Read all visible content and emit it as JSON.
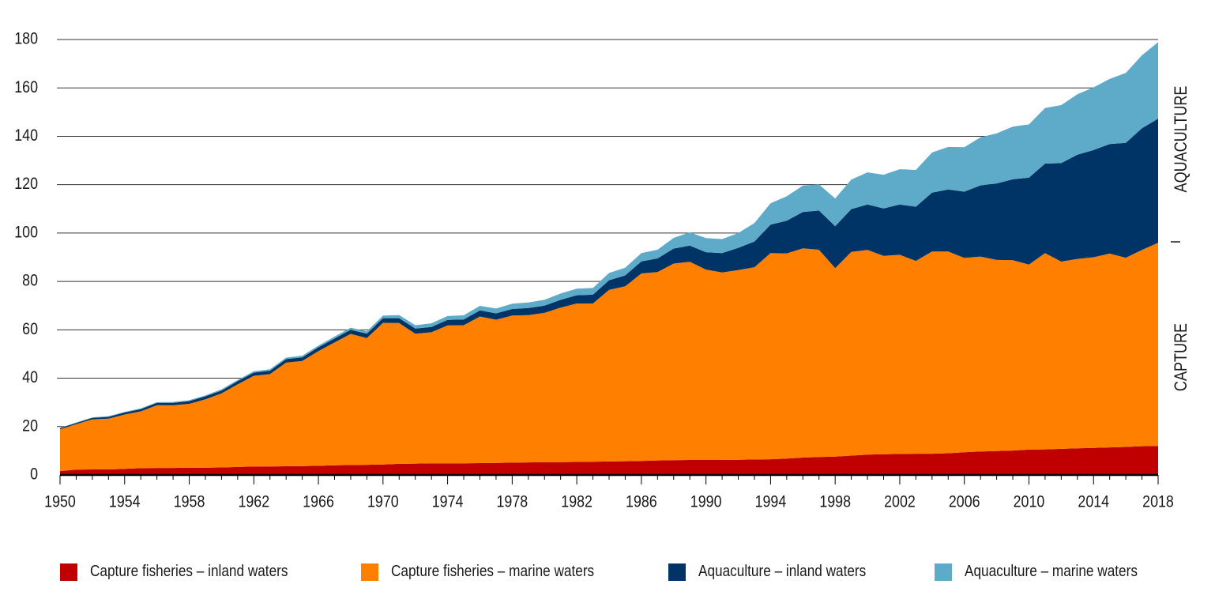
{
  "chart_data": {
    "type": "area",
    "stacked": true,
    "x_start": 1950,
    "x_end": 2018,
    "x_tick_labels": [
      "1950",
      "1954",
      "1958",
      "1962",
      "1966",
      "1970",
      "1974",
      "1978",
      "1982",
      "1986",
      "1990",
      "1994",
      "1998",
      "2002",
      "2006",
      "2010",
      "2014",
      "2018"
    ],
    "y_tick_labels": [
      "0",
      "20",
      "40",
      "60",
      "80",
      "100",
      "120",
      "140",
      "160",
      "180"
    ],
    "ylim": [
      0,
      180
    ],
    "grid": true,
    "side_labels": {
      "upper": "AQUACULTURE",
      "lower": "CAPTURE"
    },
    "series": [
      {
        "name": "Capture fisheries – inland waters",
        "color": "#c00000",
        "values": [
          1.6,
          2.2,
          2.3,
          2.3,
          2.5,
          2.8,
          2.9,
          2.9,
          3.0,
          3.0,
          3.1,
          3.3,
          3.5,
          3.5,
          3.6,
          3.7,
          3.8,
          4.0,
          4.1,
          4.2,
          4.3,
          4.6,
          4.7,
          4.8,
          4.8,
          4.8,
          4.9,
          5.0,
          5.1,
          5.2,
          5.3,
          5.3,
          5.4,
          5.5,
          5.6,
          5.7,
          5.8,
          6.0,
          6.1,
          6.2,
          6.2,
          6.2,
          6.3,
          6.4,
          6.5,
          6.8,
          7.2,
          7.4,
          7.6,
          8.0,
          8.4,
          8.6,
          8.7,
          8.8,
          8.8,
          9.0,
          9.4,
          9.7,
          9.9,
          10.1,
          10.5,
          10.6,
          10.8,
          11.0,
          11.2,
          11.4,
          11.6,
          11.9,
          12.0
        ]
      },
      {
        "name": "Capture fisheries – marine waters",
        "color": "#ff8000",
        "values": [
          17.3,
          18.8,
          20.7,
          21.0,
          22.5,
          23.5,
          25.9,
          25.9,
          26.4,
          28.3,
          30.6,
          34.2,
          37.5,
          38.2,
          42.9,
          43.4,
          47.4,
          50.8,
          54.2,
          52.4,
          58.6,
          58.2,
          53.7,
          54.2,
          57.0,
          57.1,
          60.6,
          59.2,
          60.8,
          60.9,
          61.7,
          63.9,
          65.5,
          65.4,
          70.9,
          72.3,
          77.5,
          77.9,
          81.3,
          81.9,
          78.7,
          77.5,
          78.4,
          79.5,
          85.2,
          84.8,
          86.5,
          85.7,
          77.9,
          84.2,
          84.6,
          82.0,
          82.3,
          79.7,
          83.6,
          83.4,
          80.3,
          80.6,
          79.0,
          78.7,
          76.5,
          81.1,
          77.4,
          78.3,
          78.8,
          80.1,
          78.2,
          81.1,
          84.0
        ]
      },
      {
        "name": "Aquaculture – inland waters",
        "color": "#003366",
        "values": [
          0.4,
          0.5,
          0.6,
          0.7,
          0.8,
          0.9,
          1.0,
          1.0,
          1.1,
          1.2,
          1.2,
          1.3,
          1.3,
          1.4,
          1.4,
          1.5,
          1.6,
          1.6,
          1.7,
          1.8,
          1.9,
          2.0,
          2.1,
          2.2,
          2.3,
          2.4,
          2.5,
          2.6,
          2.7,
          2.9,
          3.0,
          3.2,
          3.4,
          3.6,
          4.0,
          4.5,
          5.0,
          5.6,
          6.2,
          6.7,
          7.2,
          8.0,
          9.2,
          10.6,
          11.8,
          13.5,
          15.0,
          16.2,
          17.3,
          17.7,
          18.8,
          19.6,
          20.8,
          22.4,
          24.3,
          25.6,
          27.4,
          29.4,
          31.6,
          33.4,
          35.9,
          37.0,
          40.7,
          43.1,
          44.3,
          45.3,
          47.5,
          50.3,
          51.3
        ]
      },
      {
        "name": "Aquaculture – marine waters",
        "color": "#5eaac9",
        "values": [
          0.2,
          0.2,
          0.2,
          0.3,
          0.3,
          0.3,
          0.3,
          0.4,
          0.4,
          0.4,
          0.5,
          0.5,
          0.6,
          0.6,
          0.6,
          0.7,
          0.7,
          0.8,
          0.9,
          1.0,
          1.1,
          1.3,
          1.4,
          1.5,
          1.6,
          1.7,
          1.9,
          2.0,
          2.2,
          2.3,
          2.4,
          2.6,
          2.7,
          2.8,
          3.0,
          3.2,
          3.4,
          3.6,
          4.4,
          5.5,
          5.8,
          5.8,
          6.1,
          7.6,
          8.8,
          10.1,
          10.9,
          10.8,
          11.5,
          12.2,
          13.3,
          13.9,
          14.6,
          15.2,
          16.6,
          17.6,
          18.4,
          19.9,
          20.7,
          21.8,
          22.0,
          23.0,
          24.0,
          25.0,
          25.9,
          26.9,
          28.9,
          30.2,
          31.6
        ]
      }
    ]
  }
}
